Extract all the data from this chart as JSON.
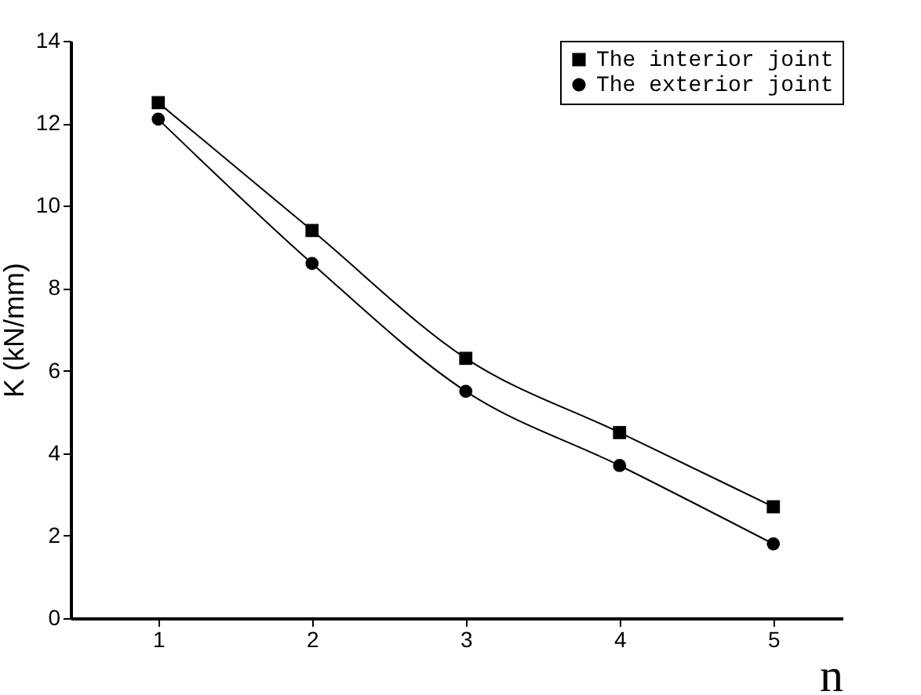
{
  "chart_data": {
    "type": "line",
    "xlabel": "n",
    "ylabel": "K (kN/mm)",
    "x": [
      1,
      2,
      3,
      4,
      5
    ],
    "series": [
      {
        "name": "The interior joint",
        "color": "#000000",
        "marker": "square",
        "values": [
          12.5,
          9.4,
          6.3,
          4.5,
          2.7
        ]
      },
      {
        "name": "The exterior joint",
        "color": "#000000",
        "marker": "circle",
        "values": [
          12.1,
          8.6,
          5.5,
          3.7,
          1.8
        ]
      }
    ],
    "xlim": [
      0.43,
      5.45
    ],
    "xticks": [
      1,
      2,
      3,
      4,
      5
    ],
    "ylim": [
      0,
      14
    ],
    "yticks": [
      0,
      2,
      4,
      6,
      8,
      10,
      12,
      14
    ],
    "grid": false,
    "legend": "top right",
    "line_style": "solid"
  }
}
